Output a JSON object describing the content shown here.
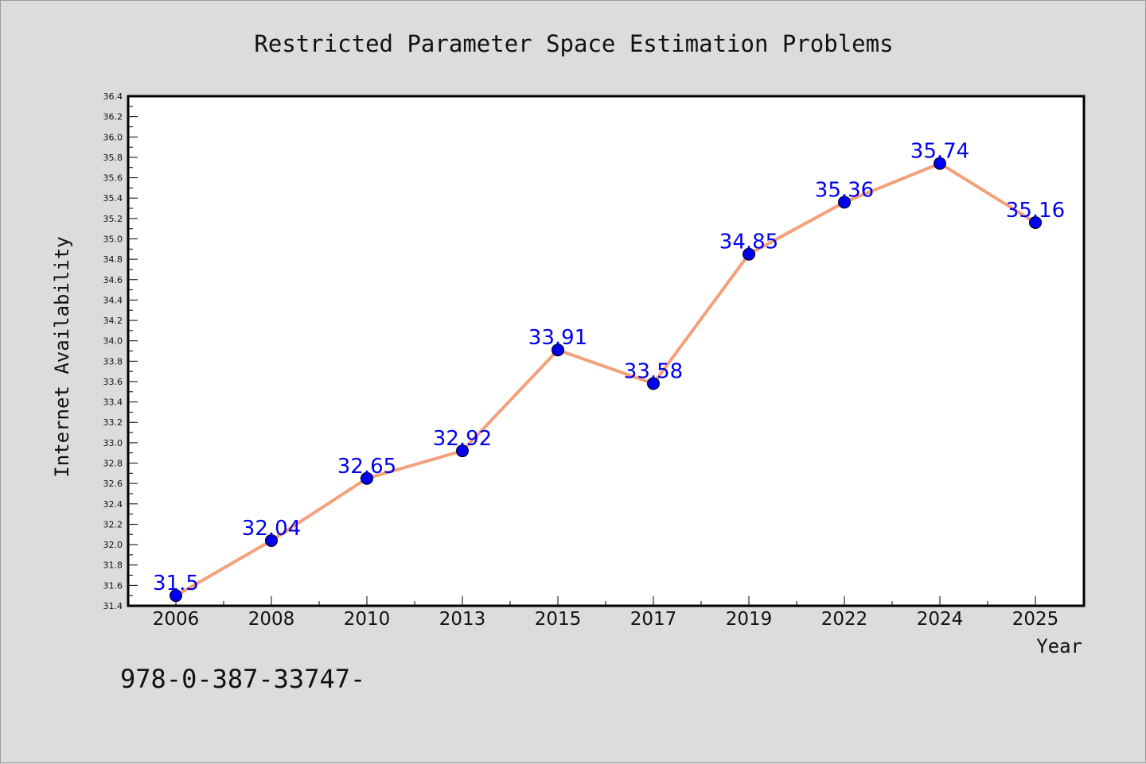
{
  "chart_data": {
    "type": "line",
    "title": "Restricted Parameter Space Estimation Problems",
    "xlabel": "Year",
    "ylabel": "Internet Availability",
    "categories": [
      "2006",
      "2008",
      "2010",
      "2013",
      "2015",
      "2017",
      "2019",
      "2022",
      "2024",
      "2025"
    ],
    "series": [
      {
        "values": [
          31.5,
          32.04,
          32.65,
          32.92,
          33.91,
          33.58,
          34.85,
          35.36,
          35.74,
          35.16
        ],
        "line_color": "#f4a07a",
        "marker_color": "#0000ee"
      }
    ],
    "data_labels": [
      "31.5",
      "32.04",
      "32.65",
      "32.92",
      "33.91",
      "33.58",
      "34.85",
      "35.36",
      "35.74",
      "35.16"
    ],
    "ylim": [
      31.4,
      36.4
    ],
    "yticks": [
      "31.4",
      "31.6",
      "31.8",
      "32.0",
      "32.2",
      "32.4",
      "32.6",
      "32.8",
      "33.0",
      "33.2",
      "33.4",
      "33.6",
      "33.8",
      "34.0",
      "34.2",
      "34.4",
      "34.6",
      "34.8",
      "35.0",
      "35.2",
      "35.4",
      "35.6",
      "35.8",
      "36.0",
      "36.2",
      "36.4"
    ],
    "grid": false,
    "legend": "none"
  },
  "footer": {
    "text": "978-0-387-33747-"
  }
}
